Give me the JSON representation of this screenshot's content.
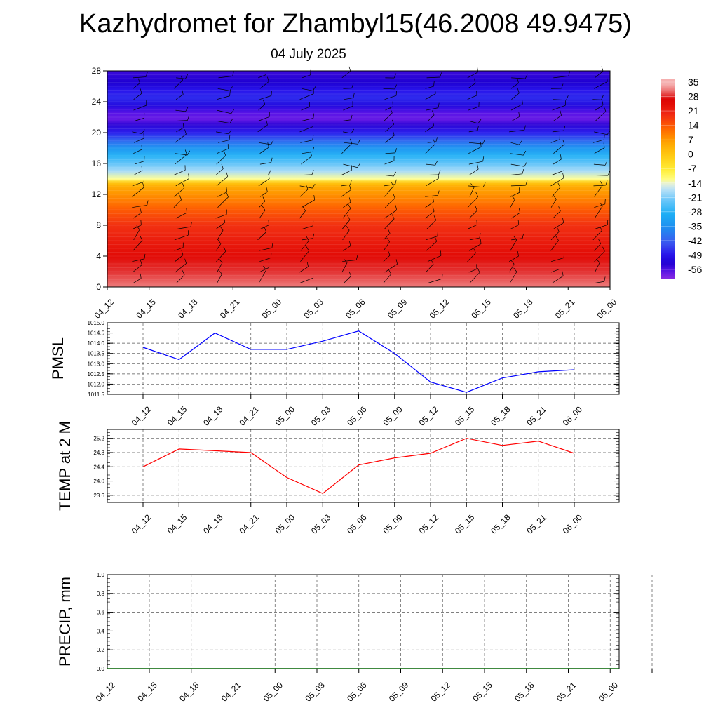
{
  "header": {
    "title": "Kazhydromet for Zhambyl15(46.2008 49.9475)",
    "subtitle": "04 July 2025"
  },
  "chart_data": [
    {
      "type": "heatmap",
      "title": "Kazhydromet for Zhambyl15(46.2008 49.9475)",
      "subtitle": "04 July 2025",
      "x_ticks": [
        "04_12",
        "04_15",
        "04_18",
        "04_21",
        "05_00",
        "05_03",
        "05_06",
        "05_09",
        "05_12",
        "05_15",
        "05_18",
        "05_21",
        "06_00"
      ],
      "y_ticks": [
        0,
        4,
        8,
        12,
        16,
        20,
        24,
        28
      ],
      "ylim": [
        0,
        28
      ],
      "colorbar_labels": [
        "35",
        "28",
        "21",
        "14",
        "7",
        "0",
        "-7",
        "-14",
        "-21",
        "-28",
        "-35",
        "-42",
        "-49",
        "-56"
      ],
      "colorbar_range": [
        -60,
        38
      ],
      "temperature_profile": {
        "levels": [
          0,
          2,
          4,
          6,
          8,
          10,
          11,
          12,
          13,
          13.6,
          14,
          15,
          16,
          17,
          18,
          19,
          20,
          21,
          21.7,
          22.5,
          23.5,
          24.5,
          25.5,
          26.5,
          28
        ],
        "values": [
          33,
          30,
          26,
          23,
          20,
          15,
          12,
          9,
          6,
          0,
          -12,
          -17,
          -22,
          -27,
          -33,
          -40,
          -47,
          -53,
          -57,
          -56,
          -50,
          -46,
          -48,
          -52,
          -54
        ]
      },
      "wind_barbs": true
    },
    {
      "type": "line",
      "ylabel": "PMSL",
      "x": [
        "04_12",
        "04_15",
        "04_18",
        "04_21",
        "05_00",
        "05_03",
        "05_06",
        "05_09",
        "05_12",
        "05_15",
        "05_18",
        "05_21",
        "06_00"
      ],
      "series": [
        {
          "values": [
            1013.8,
            1013.2,
            1014.5,
            1013.7,
            1013.7,
            1014.1,
            1014.6,
            1013.5,
            1012.1,
            1011.6,
            1012.3,
            1012.6,
            1012.7
          ],
          "color": "#0000ff"
        }
      ],
      "ylim": [
        1011.5,
        1015.0
      ],
      "y_ticks": [
        "1011.5",
        "1012.0",
        "1012.5",
        "1013.0",
        "1013.5",
        "1014.0",
        "1014.5",
        "1015.0"
      ],
      "grid": true
    },
    {
      "type": "line",
      "ylabel": "TEMP at 2 M",
      "x": [
        "04_12",
        "04_15",
        "04_18",
        "04_21",
        "05_00",
        "05_03",
        "05_06",
        "05_09",
        "05_12",
        "05_15",
        "05_18",
        "05_21",
        "06_00"
      ],
      "series": [
        {
          "values": [
            24.4,
            24.9,
            24.85,
            24.8,
            24.1,
            23.65,
            24.45,
            24.65,
            24.78,
            25.2,
            25.0,
            25.12,
            24.78
          ],
          "color": "#ff0000"
        }
      ],
      "ylim": [
        23.4,
        25.45
      ],
      "y_ticks": [
        "23.6",
        "24.0",
        "24.4",
        "24.8",
        "25.2"
      ],
      "grid": true
    },
    {
      "type": "line",
      "ylabel": "PRECIP, mm",
      "x_ticks": [
        "04_12",
        "04_15",
        "04_18",
        "04_21",
        "05_00",
        "05_03",
        "05_06",
        "05_09",
        "05_12",
        "05_15",
        "05_18",
        "05_21",
        "06_00"
      ],
      "series": [
        {
          "values": [
            0,
            0,
            0,
            0,
            0,
            0,
            0,
            0,
            0,
            0,
            0,
            0,
            0
          ],
          "color": "#006400"
        }
      ],
      "ylim": [
        0,
        1.0
      ],
      "y_ticks": [
        "0.0",
        "0.2",
        "0.4",
        "0.6",
        "0.8",
        "1.0"
      ],
      "grid": true
    }
  ]
}
